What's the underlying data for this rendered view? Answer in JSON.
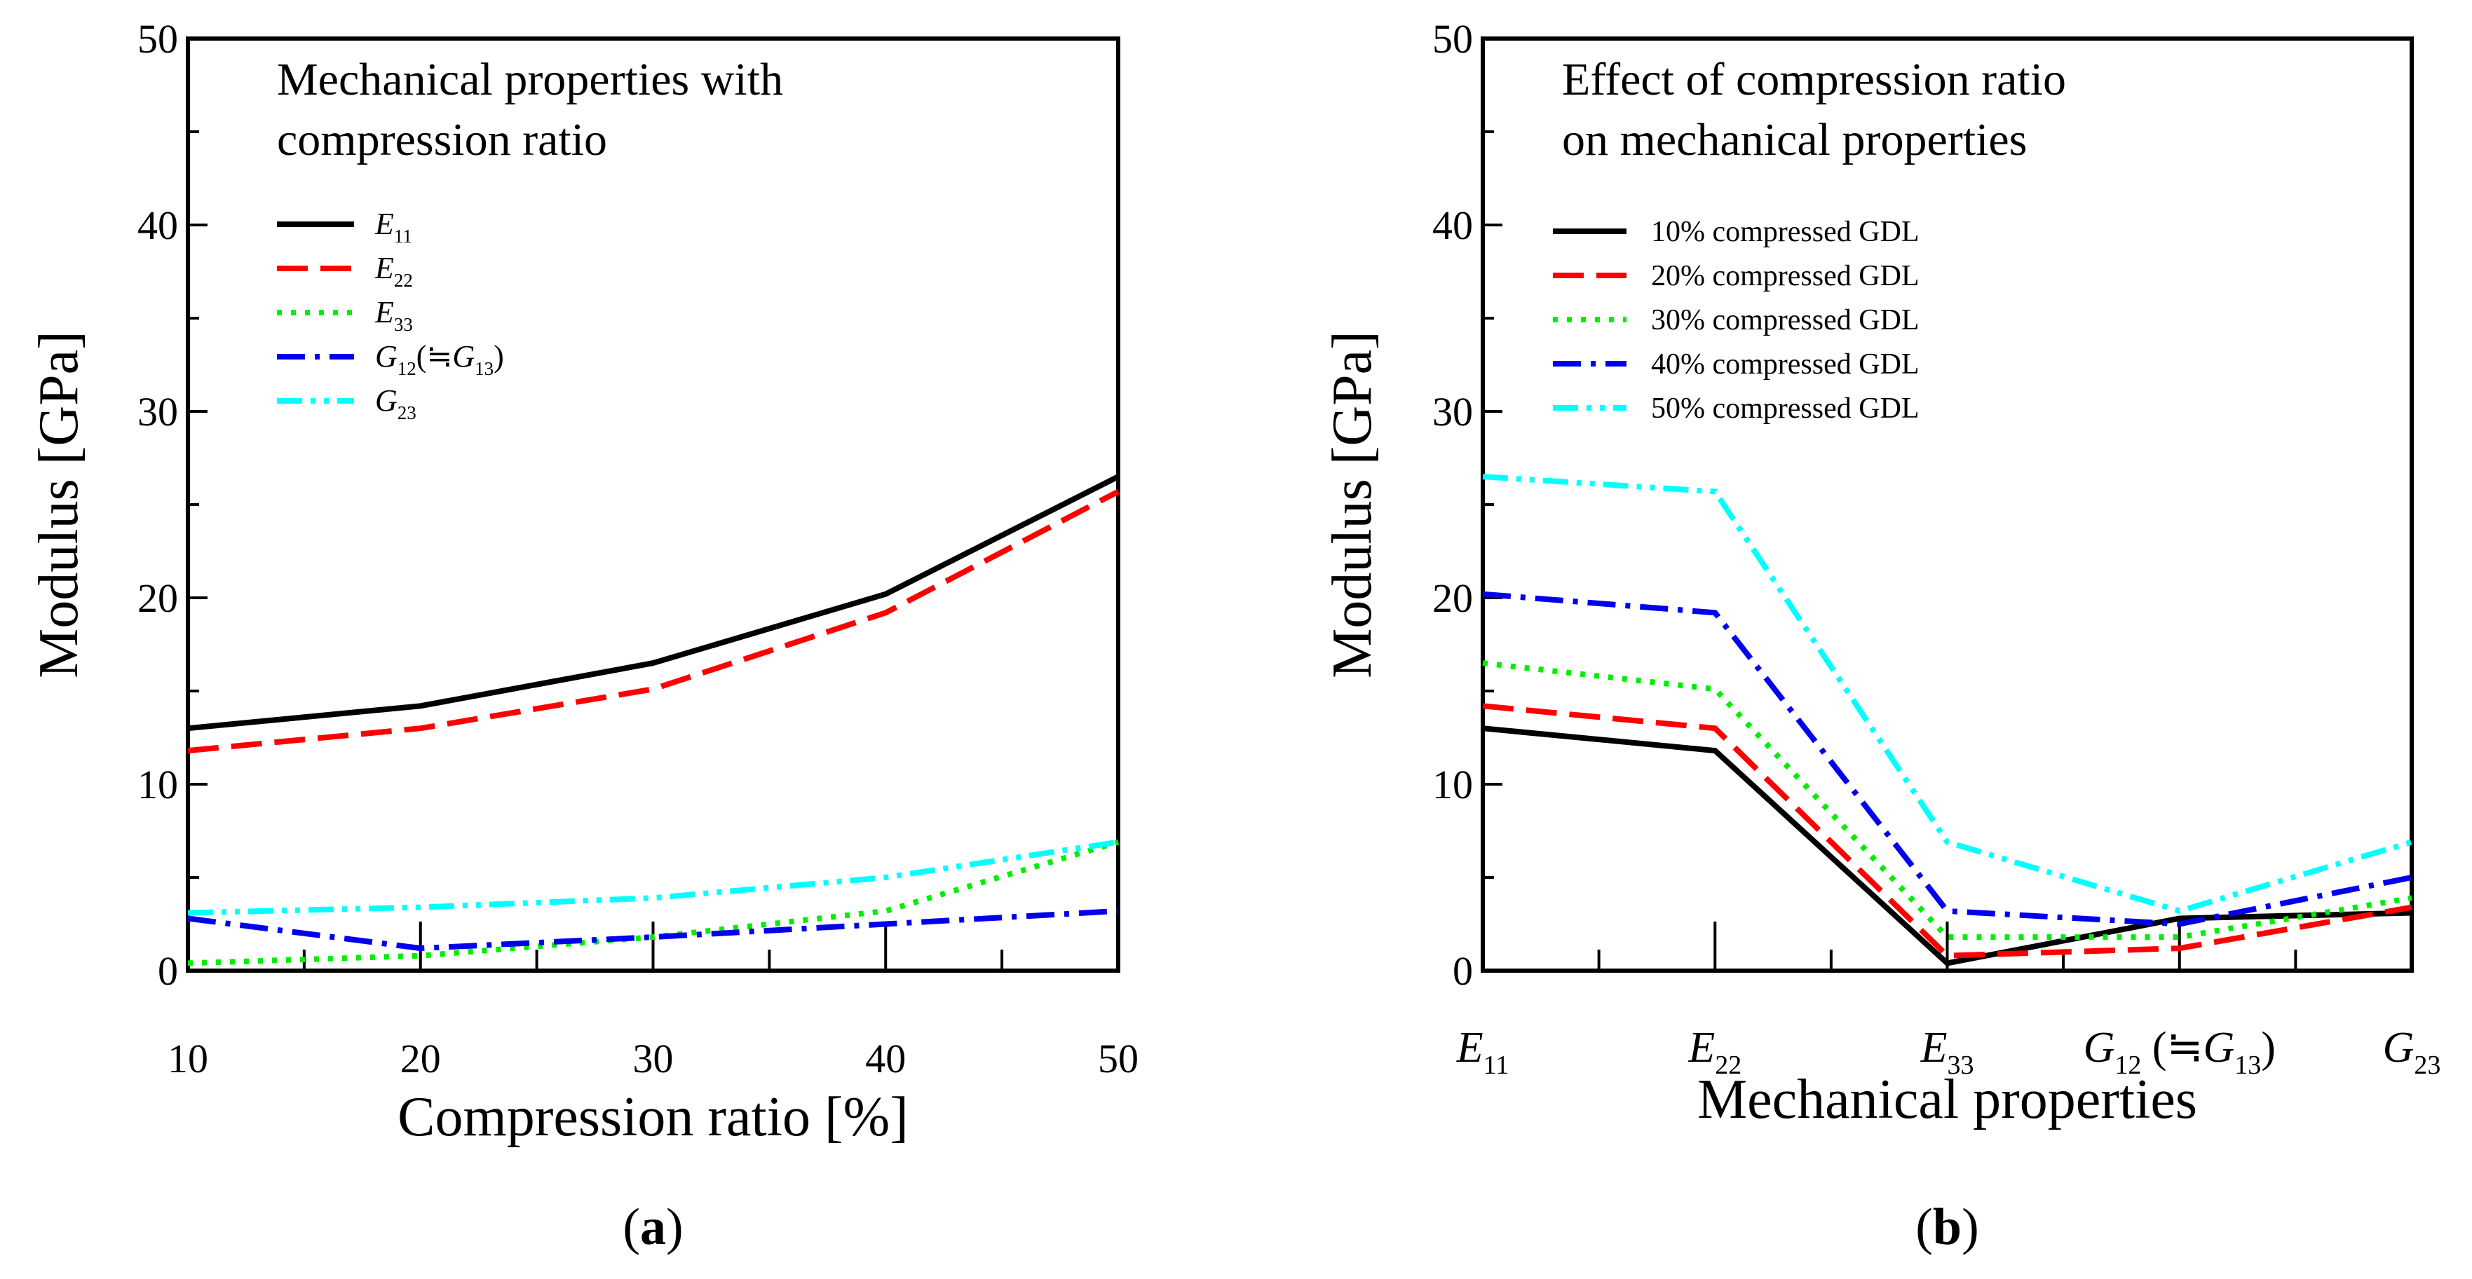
{
  "chart_data": [
    {
      "type": "line",
      "panel_label": "a",
      "title_lines": [
        "Mechanical properties with",
        "compression ratio"
      ],
      "xlabel": "Compression ratio [%]",
      "ylabel": "Modulus [GPa]",
      "xlim": [
        10,
        50
      ],
      "ylim": [
        0,
        50
      ],
      "x_ticks": [
        "10",
        "20",
        "30",
        "40",
        "50"
      ],
      "y_ticks": [
        "0",
        "10",
        "20",
        "30",
        "40",
        "50"
      ],
      "x": [
        10,
        20,
        30,
        40,
        50
      ],
      "series": [
        {
          "name": "E11",
          "sym": "E",
          "sub": "11",
          "sub_extra": "",
          "color": "#000000",
          "dash": "solid",
          "values": [
            13.0,
            14.2,
            16.5,
            20.2,
            26.5
          ]
        },
        {
          "name": "E22",
          "sym": "E",
          "sub": "22",
          "sub_extra": "",
          "color": "#ff0000",
          "dash": "dash",
          "values": [
            11.8,
            13.0,
            15.1,
            19.2,
            25.7
          ]
        },
        {
          "name": "E33",
          "sym": "E",
          "sub": "33",
          "sub_extra": "",
          "color": "#00ee00",
          "dash": "dot",
          "values": [
            0.4,
            0.8,
            1.8,
            3.2,
            6.9
          ]
        },
        {
          "name": "G12(≒G13)",
          "sym": "G",
          "sub": "12",
          "sub_extra": "(≒G13)",
          "color": "#0000ee",
          "dash": "dashdot",
          "values": [
            2.8,
            1.2,
            1.8,
            2.5,
            3.2
          ]
        },
        {
          "name": "G23",
          "sym": "G",
          "sub": "23",
          "sub_extra": "",
          "color": "#00ffff",
          "dash": "dashdotdot",
          "values": [
            3.1,
            3.4,
            3.9,
            5.0,
            6.9
          ]
        }
      ]
    },
    {
      "type": "line",
      "panel_label": "b",
      "title_lines": [
        "Effect of compression ratio",
        "on mechanical properties"
      ],
      "xlabel": "Mechanical properties",
      "ylabel": "Modulus [GPa]",
      "ylim": [
        0,
        50
      ],
      "y_ticks": [
        "0",
        "10",
        "20",
        "30",
        "40",
        "50"
      ],
      "categories": [
        "E11",
        "E22",
        "E33",
        "G12 (≒G13)",
        "G23"
      ],
      "series": [
        {
          "name": "10% compressed GDL",
          "color": "#000000",
          "dash": "solid",
          "values": [
            13.0,
            11.8,
            0.4,
            2.8,
            3.1
          ]
        },
        {
          "name": "20% compressed GDL",
          "color": "#ff0000",
          "dash": "dash",
          "values": [
            14.2,
            13.0,
            0.8,
            1.2,
            3.4
          ]
        },
        {
          "name": "30% compressed GDL",
          "color": "#00ee00",
          "dash": "dot",
          "values": [
            16.5,
            15.1,
            1.8,
            1.8,
            3.9
          ]
        },
        {
          "name": "40% compressed GDL",
          "color": "#0000ee",
          "dash": "dashdot",
          "values": [
            20.2,
            19.2,
            3.2,
            2.5,
            5.0
          ]
        },
        {
          "name": "50% compressed GDL",
          "color": "#00ffff",
          "dash": "dashdotdot",
          "values": [
            26.5,
            25.7,
            6.9,
            3.2,
            6.9
          ]
        }
      ]
    }
  ]
}
